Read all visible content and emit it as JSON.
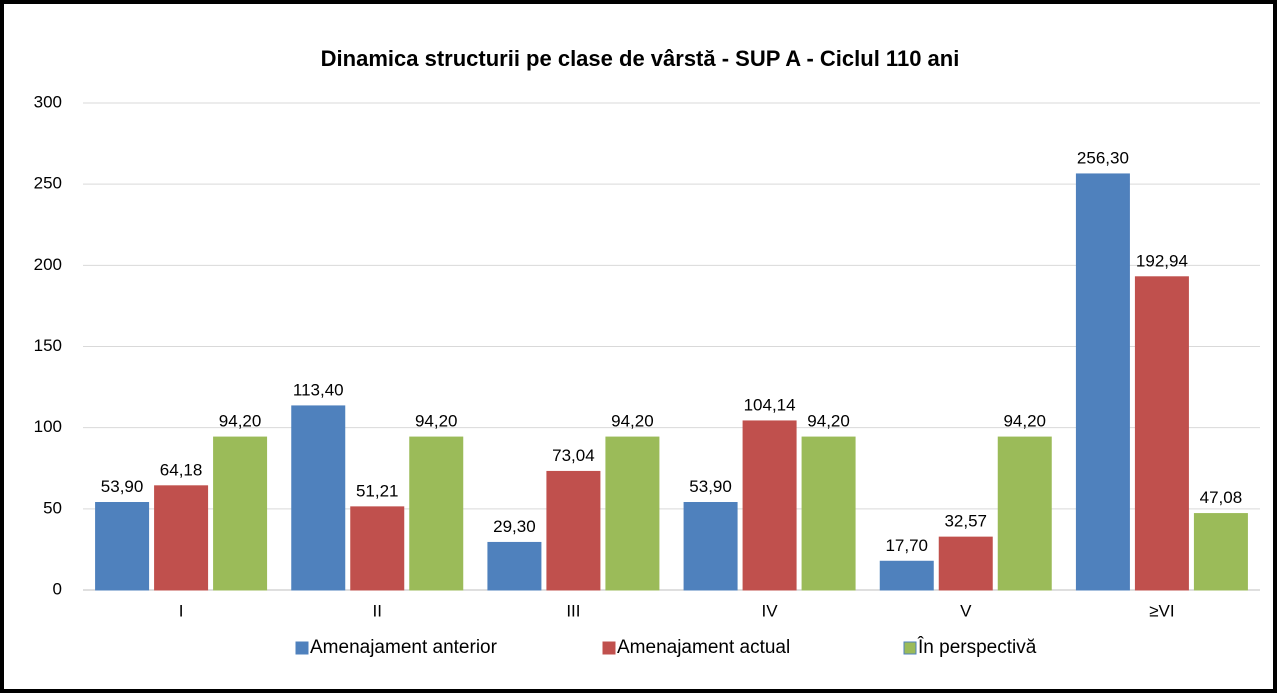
{
  "chart_data": {
    "type": "bar",
    "title": "Dinamica structurii pe clase de vârstă -  SUP A - Ciclul 110 ani",
    "categories": [
      "I",
      "II",
      "III",
      "IV",
      "V",
      "≥VI"
    ],
    "series": [
      {
        "name": "Amenajament anterior",
        "color": "#4f81bd",
        "values": [
          53.9,
          113.4,
          29.3,
          53.9,
          17.7,
          256.3
        ],
        "value_labels": [
          "53,90",
          "113,40",
          "29,30",
          "53,90",
          "17,70",
          "256,30"
        ]
      },
      {
        "name": "Amenajament actual",
        "color": "#c0504d",
        "values": [
          64.18,
          51.21,
          73.04,
          104.14,
          32.57,
          192.94
        ],
        "value_labels": [
          "64,18",
          "51,21",
          "73,04",
          "104,14",
          "32,57",
          "192,94"
        ]
      },
      {
        "name": "În perspectivă",
        "color": "#9bbb59",
        "values": [
          94.2,
          94.2,
          94.2,
          94.2,
          94.2,
          47.08
        ],
        "value_labels": [
          "94,20",
          "94,20",
          "94,20",
          "94,20",
          "94,20",
          "47,08"
        ]
      }
    ],
    "ylim": [
      0,
      300
    ],
    "yticks": [
      0,
      50,
      100,
      150,
      200,
      250,
      300
    ],
    "grid": true,
    "legend": "bottom"
  }
}
